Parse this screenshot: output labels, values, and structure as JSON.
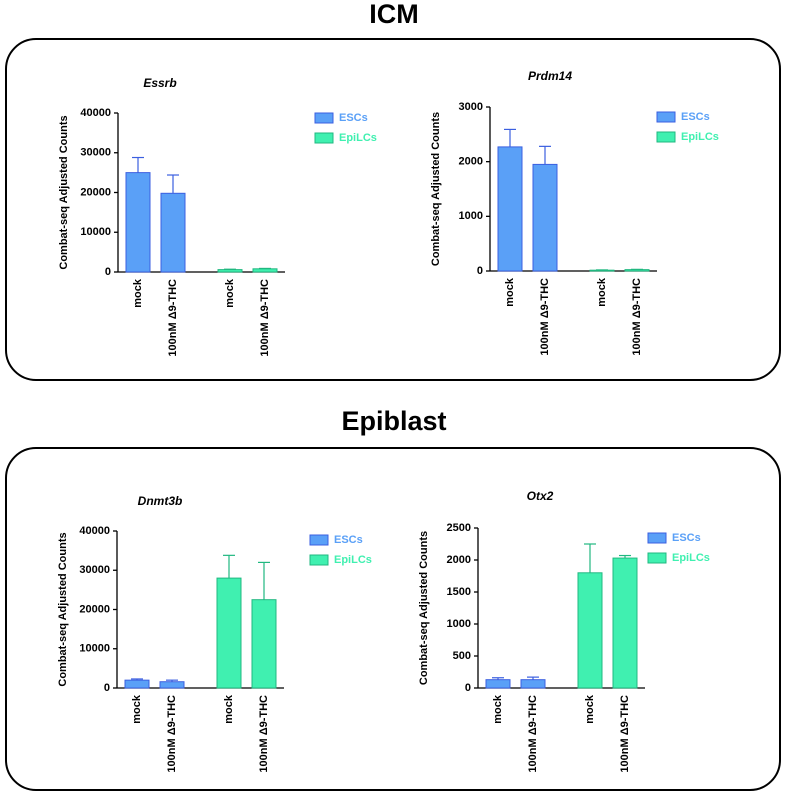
{
  "sections": [
    "ICM",
    "Epiblast"
  ],
  "chart_data": [
    {
      "type": "bar",
      "title": "Essrb",
      "ylabel": "Combat-seq Adjusted Counts",
      "categories": [
        "mock",
        "100nM Δ9-THC",
        "mock",
        "100nM Δ9-THC"
      ],
      "series": [
        {
          "name": "ESCs",
          "color": "#5aa0f7",
          "values": [
            25000,
            19800,
            null,
            null
          ],
          "errors": [
            3800,
            4600,
            null,
            null
          ]
        },
        {
          "name": "EpiLCs",
          "color": "#40f0b0",
          "values": [
            null,
            null,
            600,
            800
          ],
          "errors": [
            null,
            null,
            100,
            100
          ]
        }
      ],
      "ylim": [
        0,
        40000
      ],
      "yticks": [
        0,
        10000,
        20000,
        30000,
        40000
      ],
      "legend": "right"
    },
    {
      "type": "bar",
      "title": "Prdm14",
      "ylabel": "Combat-seq Adjusted Counts",
      "categories": [
        "mock",
        "100nM Δ9-THC",
        "mock",
        "100nM Δ9-THC"
      ],
      "series": [
        {
          "name": "ESCs",
          "color": "#5aa0f7",
          "values": [
            2270,
            1950,
            null,
            null
          ],
          "errors": [
            320,
            330,
            null,
            null
          ]
        },
        {
          "name": "EpiLCs",
          "color": "#40f0b0",
          "values": [
            null,
            null,
            15,
            25
          ],
          "errors": [
            null,
            null,
            5,
            5
          ]
        }
      ],
      "ylim": [
        0,
        3000
      ],
      "yticks": [
        0,
        1000,
        2000,
        3000
      ],
      "legend": "right"
    },
    {
      "type": "bar",
      "title": "Dnmt3b",
      "ylabel": "Combat-seq Adjusted Counts",
      "categories": [
        "mock",
        "100nM Δ9-THC",
        "mock",
        "100nM Δ9-THC"
      ],
      "series": [
        {
          "name": "ESCs",
          "color": "#5aa0f7",
          "values": [
            2000,
            1600,
            null,
            null
          ],
          "errors": [
            300,
            400,
            null,
            null
          ]
        },
        {
          "name": "EpiLCs",
          "color": "#40f0b0",
          "values": [
            null,
            null,
            28000,
            22500
          ],
          "errors": [
            null,
            null,
            5800,
            9500
          ]
        }
      ],
      "ylim": [
        0,
        40000
      ],
      "yticks": [
        0,
        10000,
        20000,
        30000,
        40000
      ],
      "legend": "right"
    },
    {
      "type": "bar",
      "title": "Otx2",
      "ylabel": "Combat-seq Adjusted Counts",
      "categories": [
        "mock",
        "100nM Δ9-THC",
        "mock",
        "100nM Δ9-THC"
      ],
      "series": [
        {
          "name": "ESCs",
          "color": "#5aa0f7",
          "values": [
            130,
            130,
            null,
            null
          ],
          "errors": [
            30,
            40,
            null,
            null
          ]
        },
        {
          "name": "EpiLCs",
          "color": "#40f0b0",
          "values": [
            null,
            null,
            1800,
            2030
          ],
          "errors": [
            null,
            null,
            450,
            40
          ]
        }
      ],
      "ylim": [
        0,
        2500
      ],
      "yticks": [
        0,
        500,
        1000,
        1500,
        2000,
        2500
      ],
      "legend": "right"
    }
  ]
}
